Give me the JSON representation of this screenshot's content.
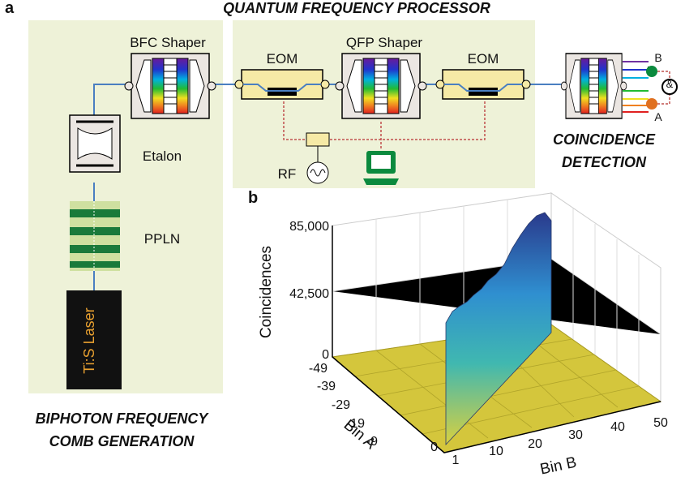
{
  "panel_a": {
    "label": "a",
    "title": "QUANTUM FREQUENCY PROCESSOR",
    "components": {
      "bfc_shaper": "BFC Shaper",
      "eom_1": "EOM",
      "qfp_shaper": "QFP Shaper",
      "eom_2": "EOM",
      "etalon": "Etalon",
      "ppln": "PPLN",
      "laser": "Ti:S Laser",
      "rf": "RF",
      "port_b": "B",
      "port_a": "A",
      "gate": "&"
    },
    "detection": [
      "COINCIDENCE",
      "DETECTION"
    ],
    "source": [
      "BIPHOTON FREQUENCY",
      "COMB GENERATION"
    ]
  },
  "panel_b": {
    "label": "b",
    "z_label": "Coincidences",
    "z_ticks": [
      "85,000",
      "42,500",
      "0"
    ],
    "x_label": "Bin A",
    "x_ticks": [
      "-49",
      "-39",
      "-29",
      "-19",
      "-9",
      "0"
    ],
    "y_label": "Bin B",
    "y_ticks": [
      "1",
      "10",
      "20",
      "30",
      "40",
      "50"
    ]
  }
}
